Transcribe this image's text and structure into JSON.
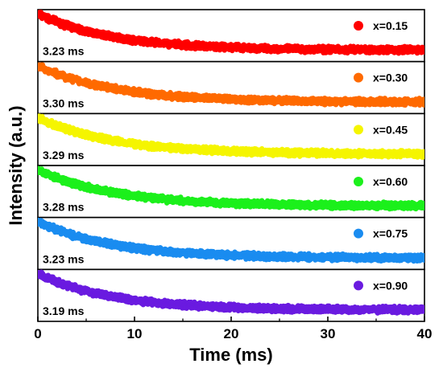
{
  "chart_data": {
    "type": "scatter",
    "title": "",
    "xlabel": "Time (ms)",
    "ylabel": "Intensity (a.u.)",
    "xlim": [
      0,
      40
    ],
    "x_ticks": [
      "0",
      "10",
      "20",
      "30",
      "40"
    ],
    "y_ticks_shown": false,
    "grid": false,
    "legend_placement": "top-right of each panel",
    "layout": "six vertically stacked panels sharing the time axis",
    "series": [
      {
        "name": "x=0.15",
        "lifetime_label": "3.23 ms",
        "lifetime_ms": 3.23,
        "color": "#ff0000",
        "start_level": 0.92,
        "end_level": 0.22
      },
      {
        "name": "x=0.30",
        "lifetime_label": "3.30 ms",
        "lifetime_ms": 3.3,
        "color": "#ff6a00",
        "start_level": 0.92,
        "end_level": 0.22
      },
      {
        "name": "x=0.45",
        "lifetime_label": "3.29 ms",
        "lifetime_ms": 3.29,
        "color": "#f5f500",
        "start_level": 0.92,
        "end_level": 0.22
      },
      {
        "name": "x=0.60",
        "lifetime_label": "3.28 ms",
        "lifetime_ms": 3.28,
        "color": "#1cf01c",
        "start_level": 0.92,
        "end_level": 0.22
      },
      {
        "name": "x=0.75",
        "lifetime_label": "3.23 ms",
        "lifetime_ms": 3.23,
        "color": "#1a8cf0",
        "start_level": 0.92,
        "end_level": 0.22
      },
      {
        "name": "x=0.90",
        "lifetime_label": "3.19 ms",
        "lifetime_ms": 3.19,
        "color": "#6a1be0",
        "start_level": 0.92,
        "end_level": 0.22
      }
    ]
  }
}
